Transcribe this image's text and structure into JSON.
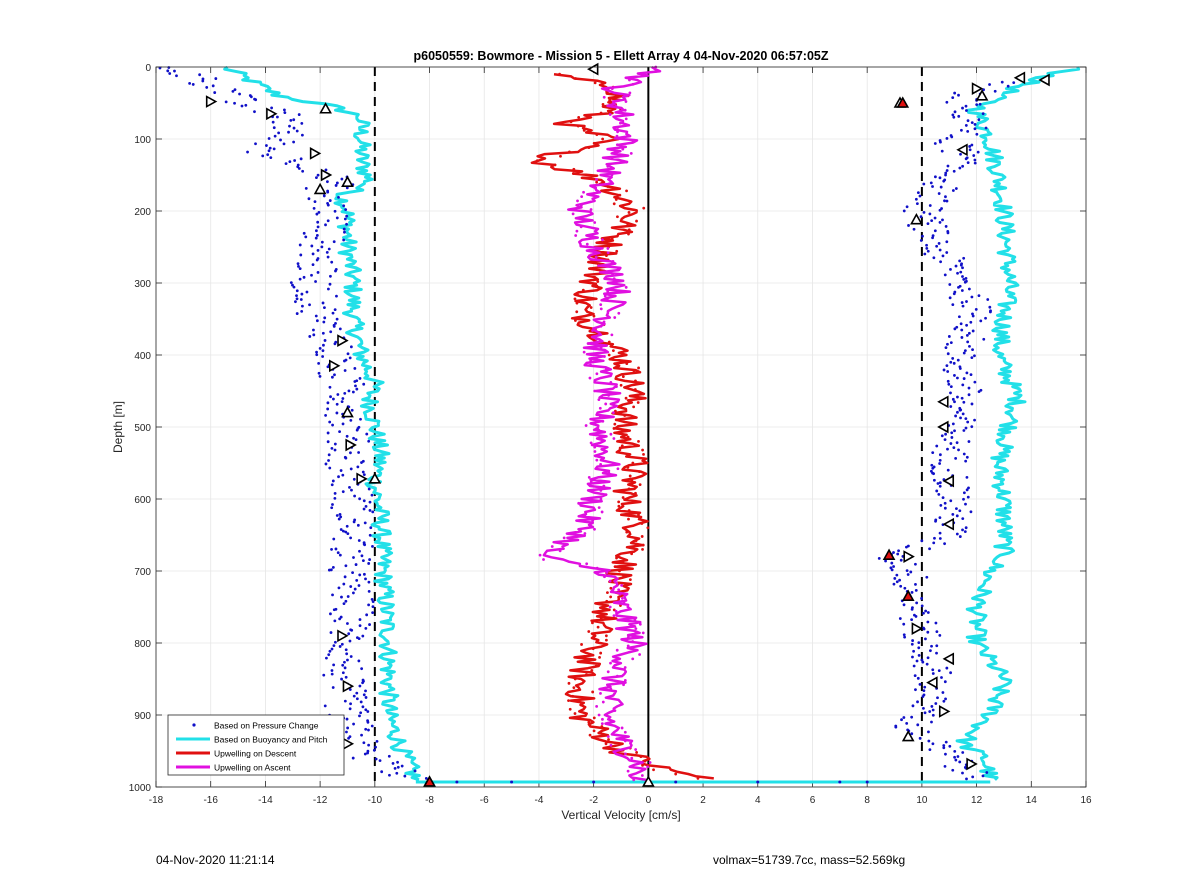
{
  "chart_data": {
    "type": "scatter",
    "title": "p6050559: Bowmore - Mission 5 - Ellett Array 4 04-Nov-2020 06:57:05Z",
    "xlabel": "Vertical Velocity [cm/s]",
    "ylabel": "Depth [m]",
    "xlim": [
      -18,
      16
    ],
    "ylim": [
      0,
      1000
    ],
    "y_reversed": true,
    "grid": true,
    "x_ticks": [
      "-18",
      "-16",
      "-14",
      "-12",
      "-10",
      "-8",
      "-6",
      "-4",
      "-2",
      "0",
      "2",
      "4",
      "6",
      "8",
      "10",
      "12",
      "14",
      "16"
    ],
    "y_ticks": [
      "0",
      "100",
      "200",
      "300",
      "400",
      "500",
      "600",
      "700",
      "800",
      "900",
      "1000"
    ],
    "legend_position": "bottom-left",
    "reference_lines": [
      {
        "x": -10,
        "style": "dashed",
        "color": "#000000"
      },
      {
        "x": 10,
        "style": "dashed",
        "color": "#000000"
      },
      {
        "x": 0,
        "style": "solid",
        "color": "#000000"
      }
    ],
    "series": [
      {
        "name": "Based on Pressure Change",
        "kind": "points",
        "color": "#1010c8",
        "descent_depth": [
          0,
          15,
          30,
          50,
          65,
          80,
          100,
          120,
          140,
          160,
          180,
          200,
          250,
          300,
          350,
          380,
          420,
          450,
          500,
          550,
          600,
          650,
          700,
          750,
          800,
          850,
          900,
          950,
          990
        ],
        "descent_x": [
          -17.5,
          -16.5,
          -15.5,
          -15.0,
          -13.5,
          -13.0,
          -13.5,
          -14.0,
          -12.0,
          -11.5,
          -12.0,
          -11.5,
          -12.0,
          -12.3,
          -12.0,
          -11.5,
          -11.5,
          -11.0,
          -11.0,
          -11.0,
          -10.8,
          -10.8,
          -11.0,
          -10.8,
          -11.0,
          -11.2,
          -11.0,
          -10.5,
          -8.5
        ],
        "ascent_depth": [
          990,
          950,
          920,
          900,
          850,
          800,
          750,
          700,
          680,
          650,
          600,
          550,
          500,
          450,
          400,
          350,
          300,
          250,
          200,
          150,
          120,
          100,
          80,
          60,
          40,
          20
        ],
        "ascent_x": [
          12.0,
          10.8,
          9.5,
          10.0,
          10.5,
          10.0,
          9.8,
          9.5,
          9.0,
          11.0,
          11.2,
          11.0,
          11.2,
          11.5,
          11.3,
          12.0,
          11.5,
          10.5,
          10.0,
          11.0,
          11.5,
          11.0,
          12.0,
          11.5,
          11.5,
          13.0
        ]
      },
      {
        "name": "Based on Buoyancy and Pitch",
        "kind": "line",
        "color": "#22e0e8",
        "descent_depth": [
          0,
          20,
          40,
          55,
          70,
          100,
          130,
          160,
          180,
          200,
          250,
          300,
          350,
          400,
          440,
          460,
          500,
          540,
          580,
          620,
          700,
          800,
          900,
          950,
          990
        ],
        "descent_x": [
          -15.5,
          -14.5,
          -13.5,
          -11.5,
          -10.5,
          -10.5,
          -10.5,
          -10.2,
          -11.2,
          -11.0,
          -11.0,
          -10.8,
          -10.8,
          -10.5,
          -10.0,
          -10.2,
          -10.0,
          -9.8,
          -10.0,
          -9.8,
          -9.7,
          -9.5,
          -9.5,
          -9.0,
          -8.5
        ],
        "ascent_depth": [
          990,
          960,
          940,
          900,
          850,
          800,
          750,
          700,
          680,
          600,
          550,
          500,
          460,
          400,
          300,
          200,
          150,
          100,
          60,
          40,
          20,
          0
        ],
        "ascent_x": [
          12.5,
          12.3,
          11.5,
          12.5,
          13.0,
          12.0,
          12.0,
          12.5,
          13.0,
          13.0,
          12.8,
          13.2,
          13.5,
          12.8,
          13.2,
          13.0,
          12.8,
          12.5,
          12.0,
          12.8,
          14.0,
          15.7
        ]
      },
      {
        "name": "Upwelling on Descent",
        "kind": "line",
        "color": "#e01010",
        "depth": [
          10,
          30,
          60,
          80,
          100,
          130,
          160,
          200,
          250,
          300,
          340,
          400,
          450,
          500,
          550,
          600,
          650,
          700,
          750,
          800,
          850,
          900,
          950,
          975,
          990
        ],
        "x": [
          -3.5,
          -1.0,
          -1.5,
          -3.0,
          -1.5,
          -4.0,
          -1.5,
          -0.5,
          -1.5,
          -2.0,
          -2.5,
          -1.0,
          -0.5,
          -1.0,
          -0.5,
          -0.8,
          -0.3,
          -1.0,
          -1.5,
          -2.0,
          -2.5,
          -2.5,
          -1.0,
          0.5,
          2.5
        ]
      },
      {
        "name": "Upwelling on Ascent",
        "kind": "line",
        "color": "#e010e0",
        "depth": [
          990,
          970,
          950,
          900,
          850,
          800,
          750,
          700,
          680,
          670,
          650,
          600,
          550,
          500,
          450,
          400,
          350,
          300,
          250,
          200,
          150,
          100,
          60,
          30,
          0
        ],
        "x": [
          -0.5,
          -0.3,
          -0.8,
          -1.5,
          -1.3,
          -0.5,
          -1.0,
          -1.5,
          -4.0,
          -3.5,
          -2.5,
          -2.0,
          -1.5,
          -1.8,
          -1.5,
          -2.0,
          -1.5,
          -1.0,
          -2.0,
          -2.5,
          -1.5,
          -0.8,
          -1.0,
          -1.2,
          0.5
        ]
      }
    ],
    "markers": {
      "triangle_right": [
        {
          "x": -16.0,
          "y": 48
        },
        {
          "x": -13.8,
          "y": 65
        },
        {
          "x": -12.2,
          "y": 120
        },
        {
          "x": -11.8,
          "y": 150
        },
        {
          "x": -11.2,
          "y": 380
        },
        {
          "x": -11.5,
          "y": 415
        },
        {
          "x": -10.9,
          "y": 525
        },
        {
          "x": -10.5,
          "y": 572
        },
        {
          "x": -11.2,
          "y": 790
        },
        {
          "x": -11.0,
          "y": 860
        },
        {
          "x": -11.5,
          "y": 915
        },
        {
          "x": -11.0,
          "y": 940
        },
        {
          "x": 9.8,
          "y": 780
        },
        {
          "x": 9.5,
          "y": 680
        },
        {
          "x": 11.8,
          "y": 968
        },
        {
          "x": 10.8,
          "y": 895
        },
        {
          "x": 12.0,
          "y": 30
        }
      ],
      "triangle_up": [
        {
          "x": -11.8,
          "y": 58
        },
        {
          "x": -12.0,
          "y": 170
        },
        {
          "x": -11.0,
          "y": 160
        },
        {
          "x": -11.0,
          "y": 480
        },
        {
          "x": -10.0,
          "y": 572
        },
        {
          "x": 9.8,
          "y": 212
        },
        {
          "x": 9.2,
          "y": 50
        },
        {
          "x": 9.5,
          "y": 930
        },
        {
          "x": 12.2,
          "y": 40
        },
        {
          "x": -8.0,
          "y": 993
        },
        {
          "x": 0.0,
          "y": 993
        }
      ],
      "triangle_left": [
        {
          "x": -2.0,
          "y": 3
        },
        {
          "x": 13.6,
          "y": 15
        },
        {
          "x": 14.5,
          "y": 18
        },
        {
          "x": 11.5,
          "y": 115
        },
        {
          "x": 10.8,
          "y": 465
        },
        {
          "x": 10.8,
          "y": 500
        },
        {
          "x": 11.0,
          "y": 575
        },
        {
          "x": 11.0,
          "y": 635
        },
        {
          "x": 11.0,
          "y": 822
        },
        {
          "x": 10.4,
          "y": 855
        }
      ],
      "red_triangle_up": [
        {
          "x": 8.8,
          "y": 678
        },
        {
          "x": 9.5,
          "y": 735
        },
        {
          "x": 9.3,
          "y": 50
        },
        {
          "x": -8.0,
          "y": 993
        }
      ]
    }
  },
  "footer": {
    "left": "04-Nov-2020 11:21:14",
    "right": "volmax=51739.7cc, mass=52.569kg"
  }
}
